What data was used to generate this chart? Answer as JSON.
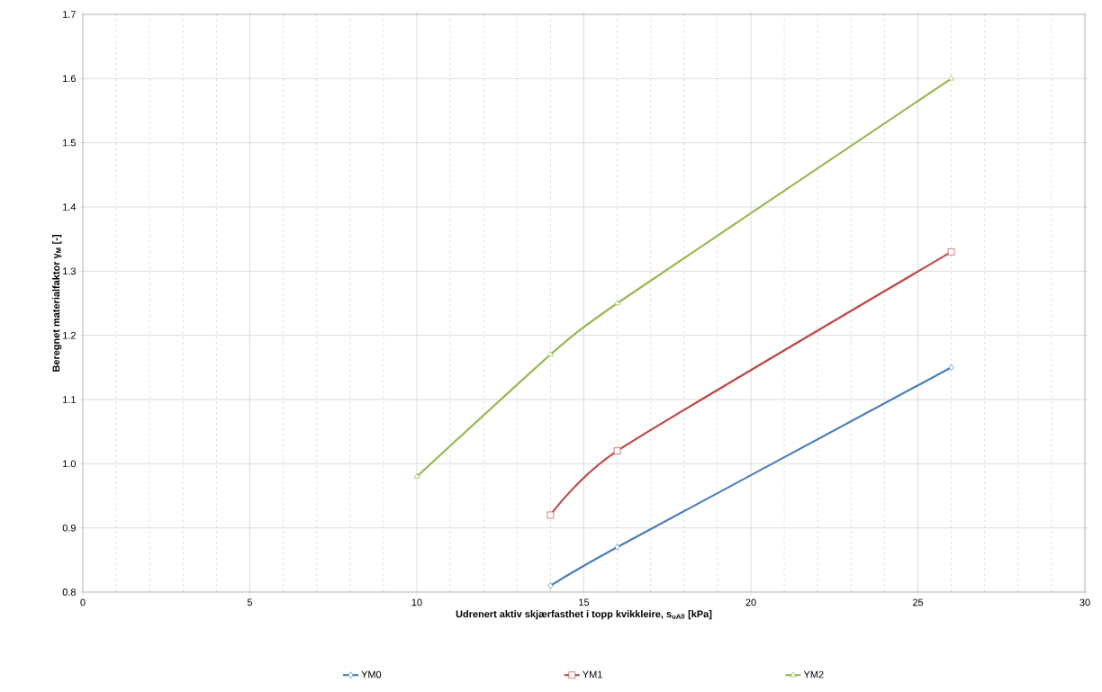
{
  "chart_data": {
    "type": "line",
    "xlabel": "Udrenert aktiv skjærfasthet i topp kvikkleire, s$_{uA0}$ [kPa]",
    "ylabel": "Beregnet materialfaktor γ$_{M}$ [-]",
    "xlim": [
      0,
      30
    ],
    "xticks": [
      0,
      5,
      10,
      15,
      20,
      25,
      30
    ],
    "ylim": [
      0.8,
      1.7
    ],
    "yticks": [
      0.8,
      0.9,
      {
        "value": 1.0,
        "label": "1.0"
      },
      1.1,
      1.2,
      1.3,
      1.4,
      1.5,
      1.6,
      1.7
    ],
    "grid": true,
    "legend": "bottom",
    "series": [
      {
        "name": "ΥM0",
        "color": "#4a7ebb",
        "marker": "diamond",
        "x": [
          14,
          16,
          26
        ],
        "values": [
          0.81,
          0.87,
          1.15
        ]
      },
      {
        "name": "ΥM1",
        "color": "#be4b48",
        "marker": "square",
        "x": [
          14,
          16,
          26
        ],
        "values": [
          0.92,
          1.02,
          1.33
        ]
      },
      {
        "name": "ΥM2",
        "color": "#98b954",
        "marker": "triangle",
        "x": [
          10,
          14,
          16,
          26
        ],
        "values": [
          0.98,
          1.17,
          1.25,
          1.6
        ]
      }
    ]
  }
}
